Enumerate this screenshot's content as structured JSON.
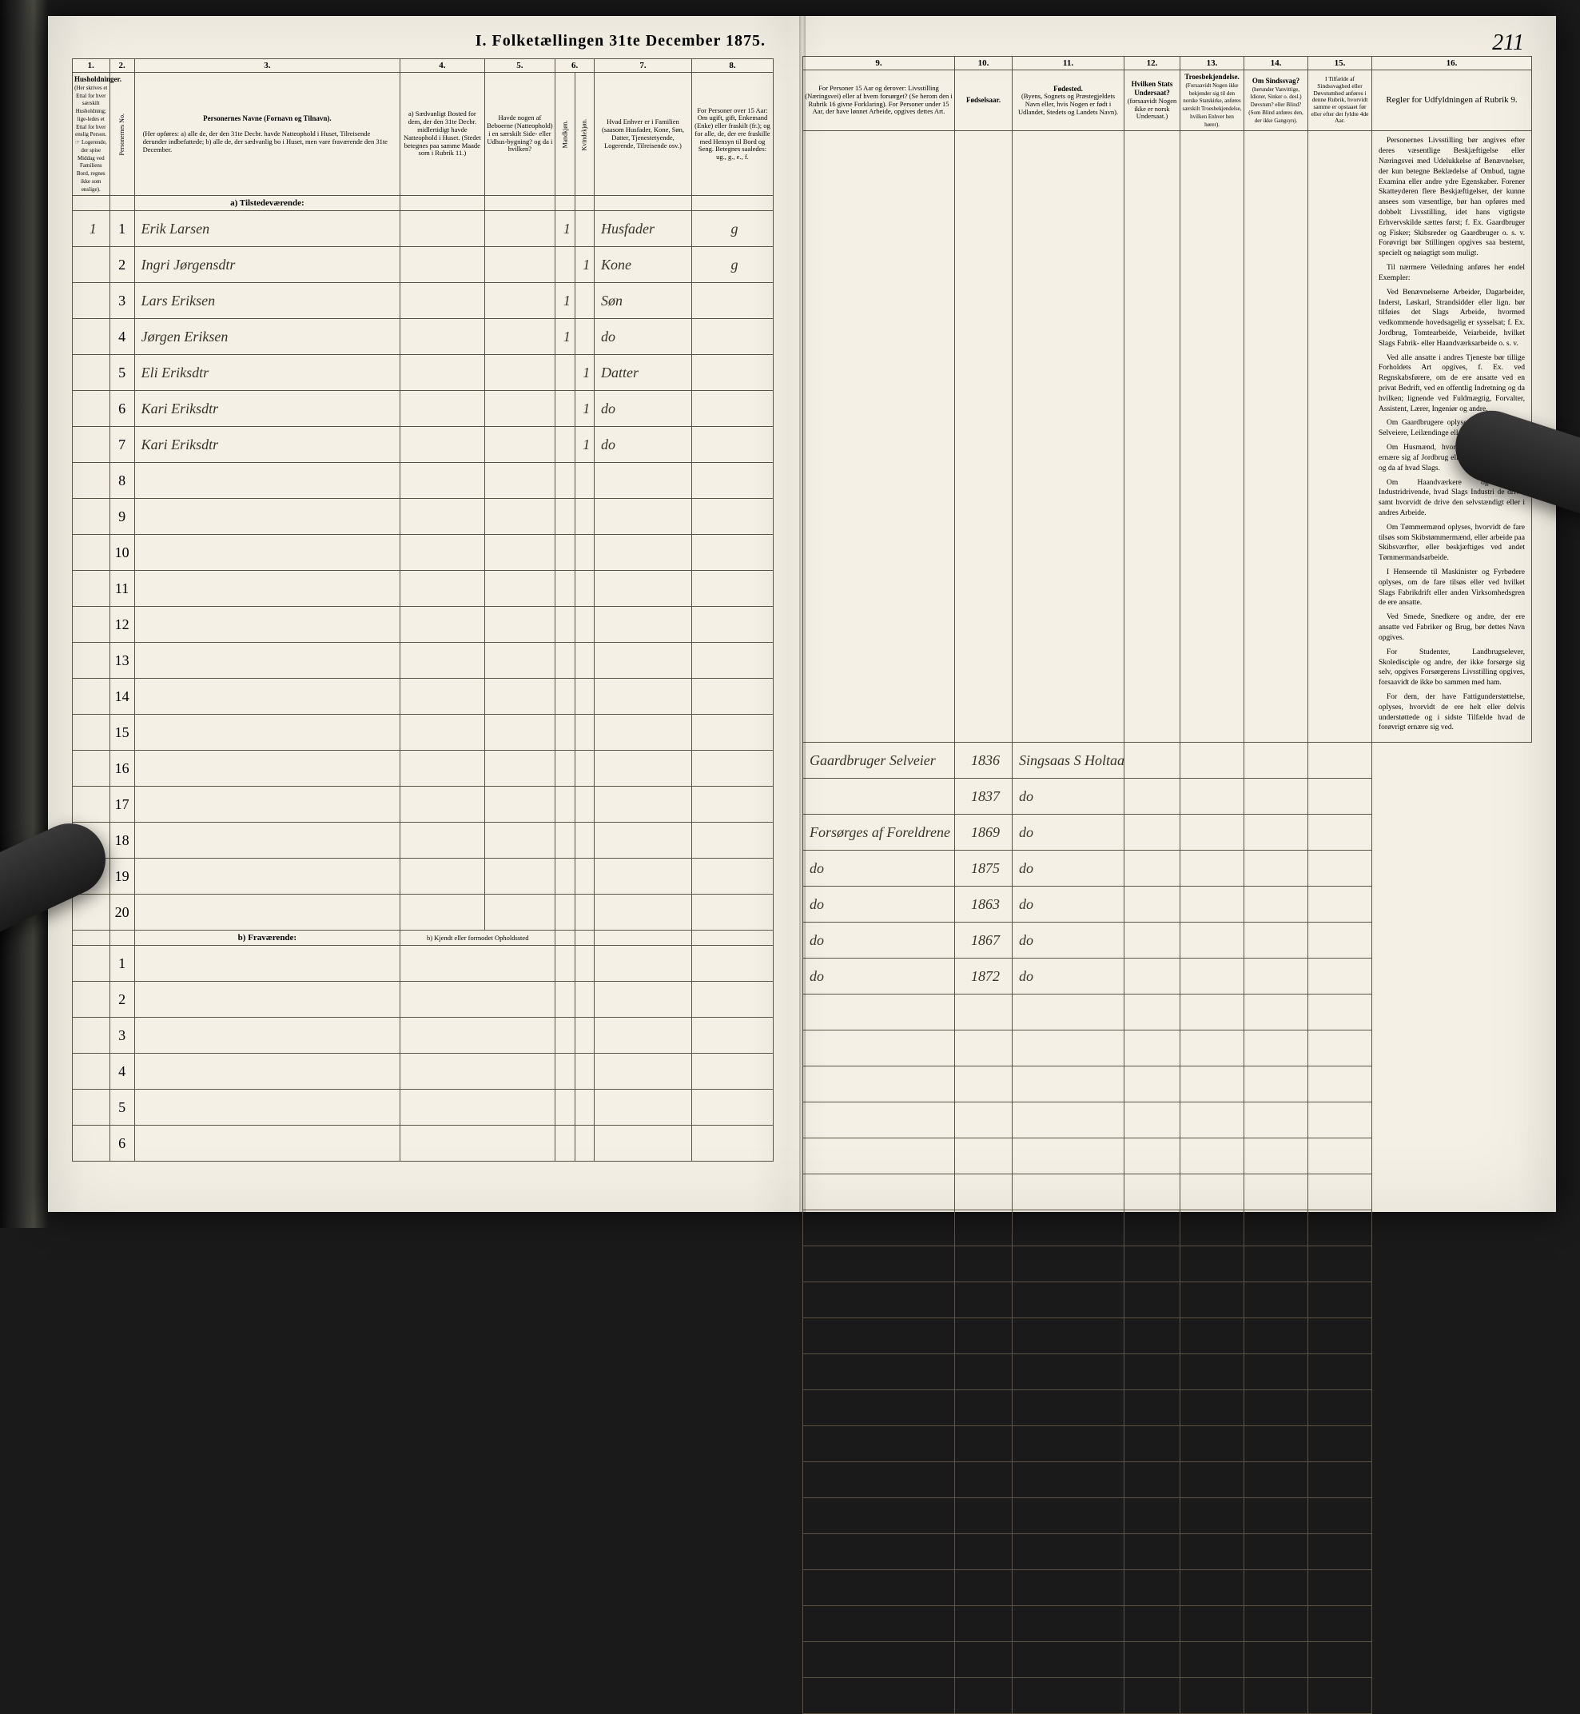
{
  "pageNumber": "211",
  "title": "I. Folketællingen 31te December 1875.",
  "columns": {
    "nums": [
      "1.",
      "2.",
      "3.",
      "4.",
      "5.",
      "6.",
      "7.",
      "8.",
      "9.",
      "10.",
      "11.",
      "12.",
      "13.",
      "14.",
      "15.",
      "16."
    ],
    "h1": "Husholdninger.",
    "h1sub": "(Her skrives et Ettal for hver særskilt Husholdning; lige-ledes et Ettal for hver enslig Person. ☞ Logerende, der spise Middag ved Familiens Bord, regnes ikke som enslige).",
    "h2": "Personernes No.",
    "h3": "Personernes Navne (Fornavn og Tilnavn).",
    "h3sub": "(Her opføres: a) alle de, der den 31te Decbr. havde Natteophold i Huset, Tilreisende derunder indbefattede; b) alle de, der sædvanlig bo i Huset, men vare fraværende den 31te December.",
    "h4": "a) Sædvanligt Bosted for dem, der den 31te Decbr. midlertidigt havde Natteophold i Huset. (Stedet betegnes paa samme Maade som i Rubrik 11.)",
    "h5": "Havde nogen af Beboerne (Natteophold) i en særskilt Side- eller Udhus-bygning? og da i hvilken?",
    "h6": "Kjøn.",
    "h6a": "Mandkjøn.",
    "h6b": "Kvindekjøn.",
    "h7": "Hvad Enhver er i Familien (saasom Husfader, Kone, Søn, Datter, Tjenestetyende, Logerende, Tilreisende osv.)",
    "h8": "For Personer over 15 Aar: Om ugift, gift, Enkemand (Enke) eller fraskilt (fr.); og for alle, de, der ere fraskille med Hensyn til Bord og Seng. Betegnes saaledes: ug., g., e., f.",
    "h9": "For Personer 15 Aar og derover: Livsstilling (Næringsvei) eller af hvem forsørget? (Se herom den i Rubrik 16 givne Forklaring). For Personer under 15 Aar, der have lønnet Arbeide, opgives dettes Art.",
    "h10": "Fødselsaar.",
    "h11": "Fødested.",
    "h11sub": "(Byens, Sognets og Præstegjeldets Navn eller, hvis Nogen er født i Udlandet, Stedets og Landets Navn).",
    "h12": "Hvilken Stats Undersaat?",
    "h12sub": "(forsaavidt Nogen ikke er norsk Undersaat.)",
    "h13": "Troesbekjendelse.",
    "h13sub": "(Forsaavidt Nogen ikke bekjender sig til den norske Statskirke, anføres særskilt Troesbekjendelse, hvilken Enhver hen hører).",
    "h14": "Om Sindssvag?",
    "h14sub": "(herunder Vanvittige, Idioter, Sinker o. desl.) Døvstum? eller Blind? (Som Blind anføres den, der ikke Gangsyn).",
    "h15": "I Tilfælde af Sindssvaghed eller Døvstumhed anføres i denne Rubrik, hvorvidt samme er opstaaet før eller efter det fyldte 4de Aar.",
    "h16": "Regler for Udfyldningen af Rubrik 9."
  },
  "sections": {
    "a": "a) Tilstedeværende:",
    "b": "b) Fraværende:",
    "bnote": "b) Kjendt eller formodet Opholdssted"
  },
  "rows": [
    {
      "n": "1",
      "hh": "1",
      "name": "Erik Larsen",
      "c4": "",
      "c5": "",
      "m": "1",
      "k": "",
      "fam": "Husfader",
      "civ": "g",
      "occ": "Gaardbruger Selveier",
      "year": "1836",
      "place": "Singsaas S Holtaalen Prgj"
    },
    {
      "n": "2",
      "hh": "",
      "name": "Ingri Jørgensdtr",
      "c4": "",
      "c5": "",
      "m": "",
      "k": "1",
      "fam": "Kone",
      "civ": "g",
      "occ": "",
      "year": "1837",
      "place": "do"
    },
    {
      "n": "3",
      "hh": "",
      "name": "Lars Eriksen",
      "c4": "",
      "c5": "",
      "m": "1",
      "k": "",
      "fam": "Søn",
      "civ": "",
      "occ": "Forsørges af Foreldrene",
      "year": "1869",
      "place": "do"
    },
    {
      "n": "4",
      "hh": "",
      "name": "Jørgen Eriksen",
      "c4": "",
      "c5": "",
      "m": "1",
      "k": "",
      "fam": "do",
      "civ": "",
      "occ": "do",
      "year": "1875",
      "place": "do"
    },
    {
      "n": "5",
      "hh": "",
      "name": "Eli Eriksdtr",
      "c4": "",
      "c5": "",
      "m": "",
      "k": "1",
      "fam": "Datter",
      "civ": "",
      "occ": "do",
      "year": "1863",
      "place": "do"
    },
    {
      "n": "6",
      "hh": "",
      "name": "Kari Eriksdtr",
      "c4": "",
      "c5": "",
      "m": "",
      "k": "1",
      "fam": "do",
      "civ": "",
      "occ": "do",
      "year": "1867",
      "place": "do"
    },
    {
      "n": "7",
      "hh": "",
      "name": "Kari Eriksdtr",
      "c4": "",
      "c5": "",
      "m": "",
      "k": "1",
      "fam": "do",
      "civ": "",
      "occ": "do",
      "year": "1872",
      "place": "do"
    }
  ],
  "sideText": [
    "Personernes Livsstilling bør angives efter deres væsentlige Beskjæftigelse eller Næringsvei med Udelukkelse af Benævnelser, der kun betegne Beklædelse af Ombud, tagne Examina eller andre ydre Egenskaber. Forener Skatteyderen flere Beskjæftigelser, der kunne ansees som væsentlige, bør han opføres med dobbelt Livsstilling, idet hans vigtigste Erhvervskilde sættes først; f. Ex. Gaardbruger og Fisker; Skibsreder og Gaardbruger o. s. v. Forøvrigt bør Stillingen opgives saa bestemt, specielt og nøiagtigt som muligt.",
    "Til nærmere Veiledning anføres her endel Exempler:",
    "Ved Benævnelserne Arbeider, Dagarbeider, Inderst, Løskarl, Strandsidder eller lign. bør tilføies det Slags Arbeide, hvormed vedkommende hovedsagelig er sysselsat; f. Ex. Jordbrug, Tomtearbeide, Veiarbeide, hvilket Slags Fabrik- eller Haandværksarbeide o. s. v.",
    "Ved alle ansatte i andres Tjeneste bør tillige Forholdets Art opgives, f. Ex. ved Regnskabsførere, om de ere ansatte ved en privat Bedrift, ved en offentlig Indretning og da hvilken; lignende ved Fuldmægtig, Forvalter, Assistent, Lærer, Ingeniør og andre.",
    "Om Gaardbrugere oplyses, hvorvidt de ere Selveiere, Leilændinge eller Forpagtere.",
    "Om Husmænd, hvorvidt de fornemmelig ernære sig af Jordbrug eller ved andet Arbeide, og da af hvad Slags.",
    "Om Haandværkere og andre Industridrivende, hvad Slags Industri de drive, samt hvorvidt de drive den selvstændigt eller i andres Arbeide.",
    "Om Tømmermænd oplyses, hvorvidt de fare tilsøs som Skibstømmermænd, eller arbeide paa Skibsværfter, eller beskjæftiges ved andet Tømmermandsarbeide.",
    "I Henseende til Maskinister og Fyrbødere oplyses, om de fare tilsøs eller ved hvilket Slags Fabrikdrift eller anden Virksomhedsgren de ere ansatte.",
    "Ved Smede, Snedkere og andre, der ere ansatte ved Fabriker og Brug, bør dettes Navn opgives.",
    "For Studenter, Landbrugselever, Skoledisciple og andre, der ikke forsørge sig selv, opgives Forsørgerens Livsstilling opgives, forsaavidt de ikke bo sammen med ham.",
    "For dem, der have Fattigunderstøttelse, oplyses, hvorvidt de ere helt eller delvis understøttede og i sidste Tilfælde hvad de forøvrigt ernære sig ved."
  ],
  "colors": {
    "paper": "#f4f0e6",
    "border": "#5a5242",
    "ink": "#3a3428"
  },
  "leftTable": {
    "widths": [
      42,
      28,
      300,
      95,
      80,
      22,
      22,
      110,
      92
    ],
    "emptyRowsA": 13,
    "emptyRowsB": 6
  },
  "rightTable": {
    "widths": [
      190,
      72,
      140,
      70,
      80,
      80,
      80,
      200
    ]
  }
}
